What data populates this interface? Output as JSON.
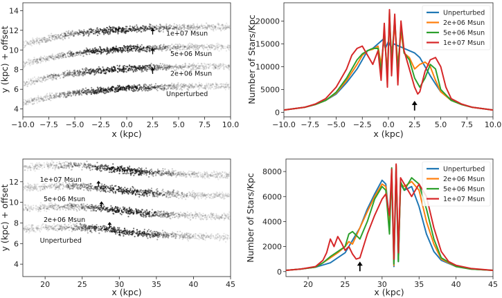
{
  "chart_data": [
    {
      "id": "p1",
      "type": "scatter",
      "xlabel": "x (kpc)",
      "ylabel": "y (kpc) + offset",
      "xlim": [
        -10,
        10
      ],
      "ylim": [
        3.2,
        14.8
      ],
      "xticks": [
        -10,
        -7.5,
        -5,
        -2.5,
        0,
        2.5,
        5,
        7.5,
        10
      ],
      "xticklabels": [
        "−10.0",
        "−7.5",
        "−5.0",
        "−2.5",
        "0.0",
        "2.5",
        "5.0",
        "7.5",
        "10.0"
      ],
      "yticks": [
        4,
        6,
        8,
        10,
        12,
        14
      ],
      "yticklabels": [
        "4",
        "6",
        "8",
        "10",
        "12",
        "14"
      ],
      "streams": [
        {
          "label": "1e+07 Msun",
          "offset": 6,
          "label_x": 3.8,
          "label_y": 11.45
        },
        {
          "label": "5e+06 Msun",
          "offset": 4,
          "label_x": 4.2,
          "label_y": 9.4
        },
        {
          "label": "2e+06 Msun",
          "offset": 2,
          "label_x": 4.2,
          "label_y": 7.4
        },
        {
          "label": "Unperturbed",
          "offset": 0,
          "label_x": 3.8,
          "label_y": 5.3
        }
      ],
      "arrows": [
        {
          "x": 2.5,
          "y_tip": 12.2
        },
        {
          "x": 2.5,
          "y_tip": 10.2
        },
        {
          "x": 2.5,
          "y_tip": 8.2
        }
      ]
    },
    {
      "id": "p2",
      "type": "line",
      "xlabel": "x (kpc)",
      "ylabel": "Number of Stars/Kpc",
      "xlim": [
        -10,
        10
      ],
      "ylim": [
        -1000,
        24000
      ],
      "xticks": [
        -10,
        -7.5,
        -5,
        -2.5,
        0,
        2.5,
        5,
        7.5,
        10
      ],
      "xticklabels": [
        "−10.0",
        "−7.5",
        "−5.0",
        "−2.5",
        "0.0",
        "2.5",
        "5.0",
        "7.5",
        "10.0"
      ],
      "yticks": [
        0,
        5000,
        10000,
        15000,
        20000
      ],
      "yticklabels": [
        "0",
        "5000",
        "10000",
        "15000",
        "20000"
      ],
      "legend": "top-right",
      "arrow": {
        "x": 2.5,
        "y_tip": 2500
      },
      "series": [
        {
          "name": "Unperturbed",
          "color": "#1f77b4",
          "x": [
            -10,
            -9,
            -8,
            -7,
            -6,
            -5,
            -4,
            -3,
            -2.5,
            -2,
            -1.5,
            -1,
            -0.5,
            -0.3,
            0,
            0.3,
            0.5,
            1,
            1.5,
            2,
            2.5,
            3,
            3.5,
            4,
            4.5,
            5,
            6,
            7,
            8,
            9,
            10
          ],
          "values": [
            500,
            800,
            1100,
            1700,
            2600,
            4000,
            6500,
            9500,
            11500,
            13500,
            14000,
            15000,
            16000,
            14000,
            15500,
            14000,
            15000,
            14500,
            14000,
            13500,
            13000,
            12000,
            10000,
            8000,
            6200,
            4500,
            2800,
            1700,
            1100,
            800,
            500
          ]
        },
        {
          "name": "2e+06 Msun",
          "color": "#ff7f0e",
          "x": [
            -10,
            -9,
            -8,
            -7,
            -6,
            -5,
            -4,
            -3,
            -2.5,
            -2,
            -1.5,
            -1,
            -0.7,
            -0.4,
            -0.1,
            0.1,
            0.3,
            0.6,
            0.9,
            1.2,
            1.5,
            2,
            2.5,
            3,
            3.5,
            4,
            4.5,
            5,
            6,
            7,
            8,
            9,
            10
          ],
          "values": [
            500,
            800,
            1100,
            1700,
            2600,
            4200,
            7000,
            10500,
            12500,
            13500,
            13800,
            14500,
            10500,
            16500,
            9000,
            20500,
            12000,
            19000,
            10500,
            17500,
            13000,
            12000,
            9500,
            10500,
            11000,
            10000,
            7000,
            4500,
            2600,
            1700,
            1100,
            800,
            500
          ]
        },
        {
          "name": "5e+06 Msun",
          "color": "#2ca02c",
          "x": [
            -10,
            -9,
            -8,
            -7,
            -6,
            -5,
            -4,
            -3,
            -2.5,
            -2,
            -1.5,
            -1,
            -0.7,
            -0.4,
            -0.1,
            0.1,
            0.3,
            0.6,
            0.9,
            1.2,
            1.5,
            2,
            2.5,
            3,
            3.5,
            4,
            4.5,
            5,
            6,
            7,
            8,
            9,
            10
          ],
          "values": [
            500,
            800,
            1100,
            1700,
            2600,
            4400,
            7500,
            11500,
            12800,
            13500,
            14000,
            14000,
            9000,
            18000,
            7500,
            22000,
            11000,
            20500,
            9000,
            19000,
            13000,
            11500,
            7500,
            5500,
            7500,
            10500,
            9500,
            5000,
            2600,
            1700,
            1100,
            800,
            500
          ]
        },
        {
          "name": "1e+07 Msun",
          "color": "#d62728",
          "x": [
            -10,
            -9,
            -8,
            -7,
            -6,
            -5,
            -4,
            -3.5,
            -3,
            -2.5,
            -2,
            -1.5,
            -1,
            -0.7,
            -0.4,
            -0.1,
            0.1,
            0.3,
            0.6,
            0.9,
            1.2,
            1.5,
            2,
            2.5,
            2.8,
            3,
            3.5,
            4,
            4.5,
            5,
            5.5,
            6,
            7,
            8,
            9,
            10
          ],
          "values": [
            500,
            800,
            1100,
            1800,
            3000,
            5500,
            9500,
            12500,
            14000,
            14500,
            12500,
            10500,
            13500,
            7000,
            19500,
            5500,
            22500,
            8000,
            21500,
            6000,
            20000,
            13500,
            9500,
            5500,
            4000,
            4500,
            9000,
            11500,
            12000,
            10000,
            5500,
            3000,
            1800,
            1100,
            800,
            500
          ]
        }
      ]
    },
    {
      "id": "p3",
      "type": "scatter",
      "xlabel": "x (kpc)",
      "ylabel": "y (kpc) + offset",
      "xlim": [
        17,
        45
      ],
      "ylim": [
        2.8,
        14.2
      ],
      "xticks": [
        20,
        25,
        30,
        35,
        40,
        45
      ],
      "xticklabels": [
        "20",
        "25",
        "30",
        "35",
        "40",
        "45"
      ],
      "yticks": [
        4,
        6,
        8,
        10,
        12
      ],
      "yticklabels": [
        "4",
        "6",
        "8",
        "10",
        "12"
      ],
      "streams": [
        {
          "label": "1e+07 Msun",
          "offset": 6,
          "label_x": 19.3,
          "label_y": 12.0
        },
        {
          "label": "5e+06 Msun",
          "offset": 4,
          "label_x": 19.8,
          "label_y": 10.1
        },
        {
          "label": "2e+06 Msun",
          "offset": 2,
          "label_x": 19.8,
          "label_y": 8.1
        },
        {
          "label": "Unperturbed",
          "offset": 0,
          "label_x": 19.3,
          "label_y": 6.1
        }
      ],
      "arrows": [
        {
          "x": 27.2,
          "y_tip": 12.1
        },
        {
          "x": 27.6,
          "y_tip": 10.1
        },
        {
          "x": 28.7,
          "y_tip": 8.1
        }
      ]
    },
    {
      "id": "p4",
      "type": "line",
      "xlabel": "x (kpc)",
      "ylabel": "Number of Stars/Kpc",
      "xlim": [
        17,
        45
      ],
      "ylim": [
        -400,
        9000
      ],
      "xticks": [
        20,
        25,
        30,
        35,
        40,
        45
      ],
      "xticklabels": [
        "20",
        "25",
        "30",
        "35",
        "40",
        "45"
      ],
      "yticks": [
        0,
        2000,
        4000,
        6000,
        8000
      ],
      "yticklabels": [
        "0",
        "2000",
        "4000",
        "6000",
        "8000"
      ],
      "legend": "top-right",
      "arrow": {
        "x": 27,
        "y_tip": 800
      },
      "series": [
        {
          "name": "Unperturbed",
          "color": "#1f77b4",
          "x": [
            17,
            19,
            21,
            23,
            25,
            27,
            28,
            29,
            30,
            30.5,
            31,
            31.3,
            31.6,
            31.9,
            32.2,
            32.5,
            33,
            34,
            35,
            36,
            37,
            38,
            40,
            42,
            45
          ],
          "values": [
            100,
            200,
            350,
            700,
            1500,
            3500,
            5000,
            6200,
            7300,
            7000,
            4000,
            7500,
            400,
            8000,
            800,
            7000,
            6500,
            6800,
            5200,
            3000,
            1600,
            900,
            400,
            200,
            100
          ]
        },
        {
          "name": "2e+06 Msun",
          "color": "#ff7f0e",
          "x": [
            17,
            19,
            21,
            22,
            23,
            24,
            25,
            25.5,
            26,
            27,
            28,
            29,
            30,
            30.5,
            31,
            31.3,
            31.6,
            31.9,
            32.2,
            32.5,
            33,
            34,
            35,
            36,
            37,
            38,
            40,
            42,
            45
          ],
          "values": [
            100,
            200,
            350,
            700,
            1100,
            1500,
            2000,
            2400,
            2200,
            3500,
            4800,
            6000,
            7000,
            6800,
            3500,
            8000,
            500,
            8500,
            1000,
            7000,
            6800,
            7200,
            6500,
            4000,
            2200,
            1000,
            400,
            200,
            100
          ]
        },
        {
          "name": "5e+06 Msun",
          "color": "#2ca02c",
          "x": [
            17,
            19,
            21,
            22,
            23,
            24,
            25,
            25.5,
            26,
            27,
            28,
            29,
            30,
            30.5,
            31,
            31.3,
            31.6,
            31.9,
            32.2,
            32.5,
            33,
            34,
            35,
            36,
            37,
            38,
            40,
            42,
            45
          ],
          "values": [
            100,
            200,
            350,
            700,
            1200,
            1600,
            2000,
            3000,
            3200,
            2600,
            4000,
            5800,
            6800,
            6500,
            3000,
            8300,
            600,
            8500,
            800,
            7200,
            6500,
            7500,
            7000,
            5000,
            2600,
            1100,
            400,
            200,
            100
          ]
        },
        {
          "name": "1e+07 Msun",
          "color": "#d62728",
          "x": [
            17,
            19,
            21,
            22,
            22.5,
            23,
            23.5,
            24,
            24.5,
            25,
            25.5,
            26,
            26.5,
            27,
            28,
            29,
            30,
            30.5,
            31,
            31.3,
            31.6,
            31.9,
            32.2,
            32.5,
            33,
            34,
            35,
            36,
            37,
            38,
            39,
            40,
            42,
            45
          ],
          "values": [
            100,
            200,
            400,
            900,
            1500,
            2600,
            2000,
            2800,
            2300,
            1700,
            2000,
            1400,
            1000,
            1100,
            3000,
            4500,
            5800,
            6200,
            4500,
            8200,
            1000,
            8600,
            1500,
            7500,
            7000,
            6000,
            7000,
            6000,
            3500,
            1600,
            800,
            500,
            250,
            100
          ]
        }
      ]
    }
  ]
}
